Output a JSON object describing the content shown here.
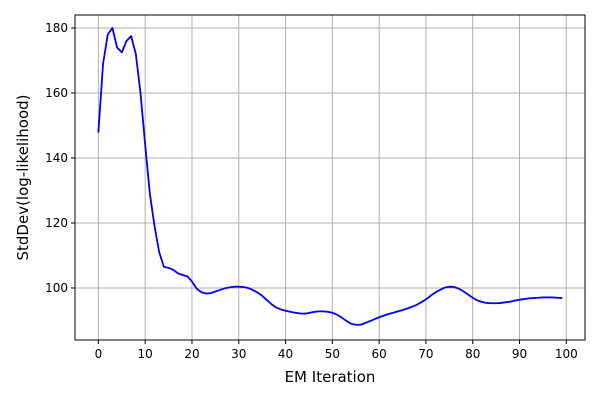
{
  "chart_data": {
    "type": "line",
    "title": "",
    "xlabel": "EM Iteration",
    "ylabel": "StdDev(log-likelihood)",
    "xlim": [
      -5,
      104
    ],
    "ylim": [
      84,
      184
    ],
    "x_ticks": [
      0,
      10,
      20,
      30,
      40,
      50,
      60,
      70,
      80,
      90,
      100
    ],
    "y_ticks": [
      100,
      120,
      140,
      160,
      180
    ],
    "grid": true,
    "legend": "none",
    "series": [
      {
        "color": "#0000ff",
        "x": [
          0,
          1,
          2,
          3,
          4,
          5,
          6,
          7,
          8,
          9,
          10,
          11,
          12,
          13,
          14,
          15,
          16,
          17,
          18,
          19,
          20,
          21,
          22,
          23,
          24,
          25,
          26,
          27,
          28,
          29,
          30,
          31,
          32,
          33,
          34,
          35,
          36,
          37,
          38,
          39,
          40,
          41,
          42,
          43,
          44,
          45,
          46,
          47,
          48,
          49,
          50,
          51,
          52,
          53,
          54,
          55,
          56,
          57,
          58,
          59,
          60,
          61,
          62,
          63,
          64,
          65,
          66,
          67,
          68,
          69,
          70,
          71,
          72,
          73,
          74,
          75,
          76,
          77,
          78,
          79,
          80,
          81,
          82,
          83,
          84,
          85,
          86,
          87,
          88,
          89,
          90,
          91,
          92,
          93,
          94,
          95,
          96,
          97,
          98,
          99
        ],
        "y": [
          148,
          169,
          178,
          180,
          174,
          172.5,
          176,
          177.5,
          172,
          160,
          144,
          129,
          119,
          111,
          106.5,
          106.2,
          105.6,
          104.5,
          104,
          103.6,
          102,
          99.8,
          98.7,
          98.3,
          98.4,
          98.9,
          99.4,
          99.9,
          100.2,
          100.4,
          100.4,
          100.3,
          100,
          99.4,
          98.6,
          97.6,
          96.3,
          95,
          94,
          93.4,
          93,
          92.7,
          92.4,
          92.2,
          92.1,
          92.3,
          92.6,
          92.8,
          92.8,
          92.7,
          92.4,
          91.8,
          90.9,
          89.9,
          89,
          88.7,
          88.7,
          89.2,
          89.8,
          90.4,
          91,
          91.5,
          92,
          92.4,
          92.8,
          93.2,
          93.7,
          94.2,
          94.8,
          95.6,
          96.5,
          97.6,
          98.6,
          99.4,
          100.1,
          100.4,
          100.3,
          99.8,
          99,
          98,
          97,
          96.2,
          95.7,
          95.4,
          95.3,
          95.3,
          95.4,
          95.6,
          95.8,
          96.1,
          96.4,
          96.6,
          96.8,
          96.9,
          97,
          97.1,
          97.1,
          97.1,
          97,
          96.9
        ]
      }
    ]
  }
}
